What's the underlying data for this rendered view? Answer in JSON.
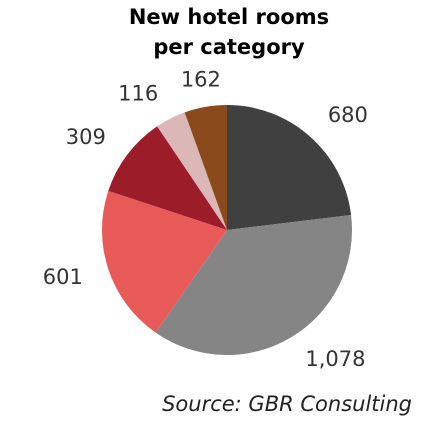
{
  "chart_data": {
    "type": "pie",
    "title": "New hotel rooms per category",
    "source": "Source: GBR Consulting",
    "values": [
      680,
      1078,
      601,
      309,
      116,
      162
    ],
    "value_labels": [
      "680",
      "1,078",
      "601",
      "309",
      "116",
      "162"
    ],
    "colors": [
      "#404040",
      "#858585",
      "#e85a58",
      "#9c1c2a",
      "#dcb7b7",
      "#8a4a1c"
    ]
  }
}
